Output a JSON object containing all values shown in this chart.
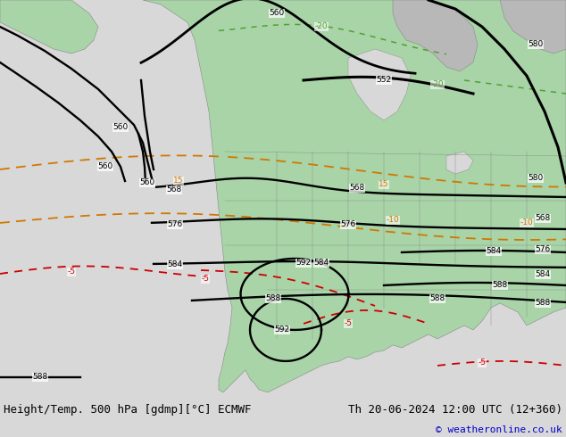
{
  "title_left": "Height/Temp. 500 hPa [gdmp][°C] ECMWF",
  "title_right": "Th 20-06-2024 12:00 UTC (12+360)",
  "copyright": "© weatheronline.co.uk",
  "bg_color": "#d8d8d8",
  "land_green_color": "#a8d4a8",
  "land_gray_color": "#b8b8b8",
  "border_color": "#888888",
  "height_contour_color": "#000000",
  "temp_orange_color": "#d07800",
  "temp_red_color": "#cc0000",
  "temp_green_color": "#50a030",
  "bottom_bar_color": "#e8e8e8",
  "bottom_text_color": "#000000",
  "copyright_color": "#0000cc",
  "font_size_bottom": 9,
  "font_size_labels": 6.5
}
